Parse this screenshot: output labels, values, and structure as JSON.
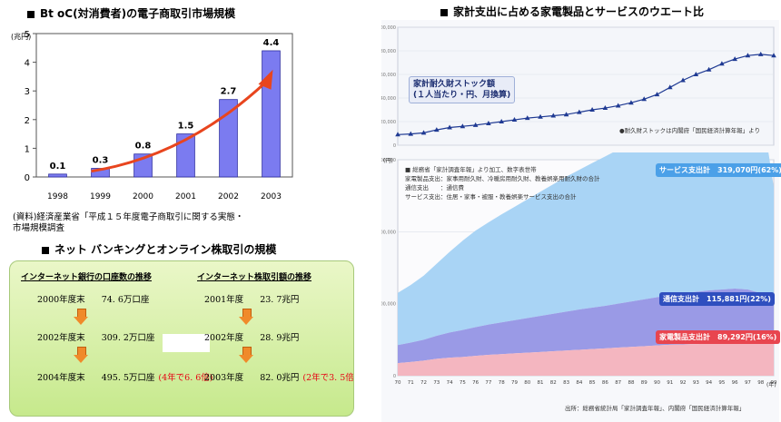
{
  "left_chart": {
    "title": "Bt oC(対消費者)の電子商取引市場規模",
    "yunit": "(兆円)",
    "source_line1": "(資料)経済産業省「平成１５年度電子商取引に関する実態・",
    "source_line2": "市場規模調査"
  },
  "net_section": {
    "title": "ネット バンキングとオンライン株取引の規模",
    "left_header": "インターネット銀行の口座数の推移",
    "right_header": "インターネット株取引額の推移",
    "left_rows": [
      {
        "year": "2000年度末",
        "value": "74. 6万口座",
        "note": ""
      },
      {
        "year": "2002年度末",
        "value": "309. 2万口座",
        "note": ""
      },
      {
        "year": "2004年度末",
        "value": "495. 5万口座",
        "note": "(4年で6. 6倍)"
      }
    ],
    "right_rows": [
      {
        "year": "2001年度",
        "value": "23. 7兆円",
        "note": ""
      },
      {
        "year": "2002年度",
        "value": "28. 9兆円",
        "note": ""
      },
      {
        "year": "2003年度",
        "value": "82. 0兆円",
        "note": "(2年で3. 5倍)"
      }
    ]
  },
  "right_chart": {
    "title": "家計支出に占める家電製品とサービスのウエート比",
    "stock_label_1": "家計耐久財ストック額",
    "stock_label_2": "(１人当たり・円、月換算)",
    "stock_note": "●耐久財ストックは内閣府「国民経済計算年報」より",
    "legend_lines": [
      "■ 総務省「家計調査年報」より加工、数字表世帯",
      "家電製品支出：家事用耐久財、冷暖房用耐久財、教養娯楽用耐久財の合計",
      "通信支出　　：通信費",
      "サービス支出：住居・家事・被服・教養娯楽サービス支出の合計"
    ],
    "service_label": "サービス支出計　319,070円(62%)",
    "comm_label": "通信支出計　115,881円(22%)",
    "appliance_label": "家電製品支出計　89,292円(16%)",
    "source": "出所：総務省統計局「家計調査年報」、内閣府「国民経済計算年報」",
    "x_unit": "(年)",
    "y_unit": "(円)"
  },
  "colors": {
    "bar_fill": "#7b7bf0",
    "trend_arrow": "#e8451e",
    "green_box": "#c6e98c",
    "service_area": "#a9d4f5",
    "comm_area": "#9a9ae6",
    "appliance_area": "#f4b6c0",
    "stock_line": "#1f3a93"
  },
  "chart_data": [
    {
      "type": "bar",
      "title": "Bt oC(対消費者)の電子商取引市場規模",
      "ylabel": "(兆円)",
      "categories": [
        "1998",
        "1999",
        "2000",
        "2001",
        "2002",
        "2003"
      ],
      "values": [
        0.1,
        0.3,
        0.8,
        1.5,
        2.7,
        4.4
      ],
      "data_labels": [
        "0.1",
        "0.3",
        "0.8",
        "1.5",
        "2.7",
        "4.4"
      ],
      "ylim": [
        0,
        5
      ],
      "yticks": [
        0,
        1,
        2,
        3,
        4,
        5
      ],
      "grid": false
    },
    {
      "type": "line",
      "title": "家計耐久財ストック額",
      "x": [
        70,
        71,
        72,
        73,
        74,
        75,
        76,
        77,
        78,
        79,
        80,
        81,
        82,
        83,
        84,
        85,
        86,
        87,
        88,
        89,
        90,
        91,
        92,
        93,
        94,
        95,
        96,
        97,
        98,
        99
      ],
      "series": [
        {
          "name": "家計耐久財ストック額",
          "values": [
            9000,
            9500,
            10500,
            13000,
            15000,
            16000,
            17000,
            18500,
            20000,
            21500,
            23000,
            24000,
            25000,
            26000,
            28000,
            30000,
            31500,
            33500,
            36000,
            39000,
            43000,
            49000,
            55000,
            60000,
            64000,
            69000,
            73000,
            76000,
            77000,
            76000
          ]
        }
      ],
      "ylim": [
        0,
        100000
      ],
      "yticks": [
        0,
        20000,
        40000,
        60000,
        80000,
        100000
      ]
    },
    {
      "type": "area",
      "title": "家計支出に占める家電製品とサービスのウエート比",
      "x": [
        70,
        71,
        72,
        73,
        74,
        75,
        76,
        77,
        78,
        79,
        80,
        81,
        82,
        83,
        84,
        85,
        86,
        87,
        88,
        89,
        90,
        91,
        92,
        93,
        94,
        95,
        96,
        97,
        98,
        99
      ],
      "ylim": [
        0,
        600000
      ],
      "yticks": [
        0,
        200000,
        400000,
        600000
      ],
      "series": [
        {
          "name": "家電製品支出計",
          "values": [
            35000,
            38000,
            42000,
            47000,
            50000,
            52000,
            55000,
            58000,
            60000,
            62000,
            64000,
            66000,
            68000,
            70000,
            72000,
            74000,
            76000,
            78000,
            80000,
            82000,
            84000,
            86000,
            87000,
            88000,
            89000,
            89500,
            90000,
            89500,
            89000,
            89292
          ]
        },
        {
          "name": "通信支出計",
          "values": [
            50000,
            54000,
            58000,
            64000,
            70000,
            75000,
            80000,
            84000,
            88000,
            92000,
            96000,
            100000,
            104000,
            108000,
            112000,
            115000,
            118000,
            122000,
            126000,
            130000,
            134000,
            138000,
            142000,
            145000,
            148000,
            150000,
            152000,
            150000,
            140000,
            115881
          ]
        },
        {
          "name": "サービス支出計",
          "values": [
            145000,
            160000,
            178000,
            200000,
            224000,
            248000,
            268000,
            284000,
            300000,
            315000,
            330000,
            345000,
            360000,
            375000,
            388000,
            402000,
            415000,
            428000,
            440000,
            454000,
            466000,
            478000,
            488000,
            498000,
            506000,
            514000,
            520000,
            526000,
            530000,
            319070
          ]
        }
      ]
    }
  ]
}
